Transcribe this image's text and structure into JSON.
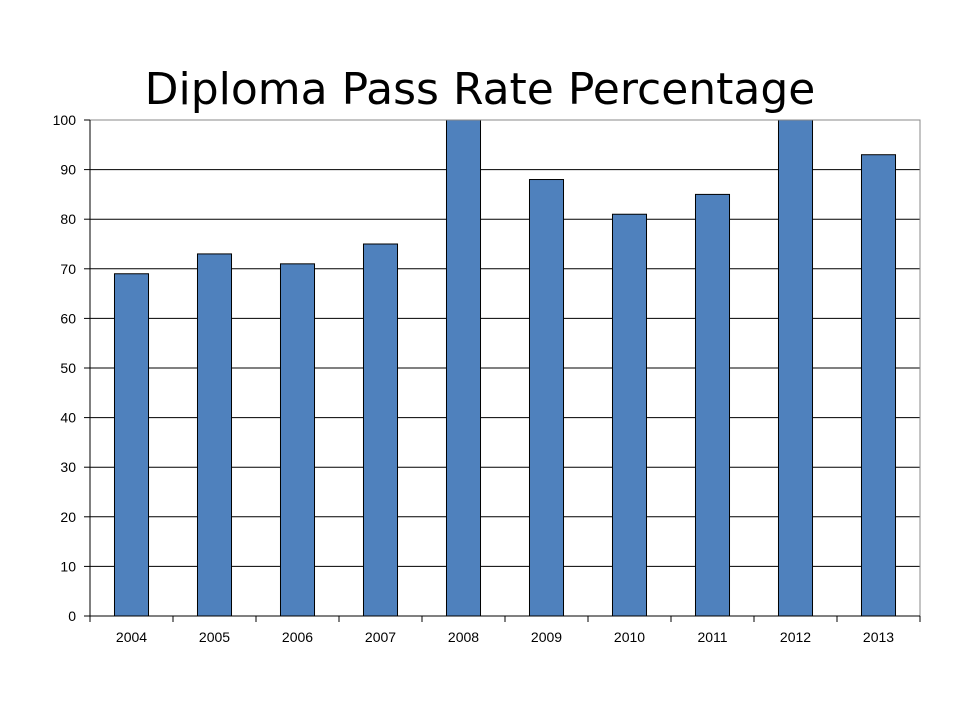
{
  "chart_data": {
    "type": "bar",
    "title": "Diploma Pass Rate Percentage",
    "xlabel": "",
    "ylabel": "",
    "categories": [
      "2004",
      "2005",
      "2006",
      "2007",
      "2008",
      "2009",
      "2010",
      "2011",
      "2012",
      "2013"
    ],
    "values": [
      69,
      73,
      71,
      75,
      100,
      88,
      81,
      85,
      100,
      93
    ],
    "ylim": [
      0,
      100
    ],
    "yticks": [
      0,
      10,
      20,
      30,
      40,
      50,
      60,
      70,
      80,
      90,
      100
    ],
    "grid": true,
    "legend": "none",
    "bar_color": "#4f81bd",
    "bar_edge_color": "#000000"
  }
}
